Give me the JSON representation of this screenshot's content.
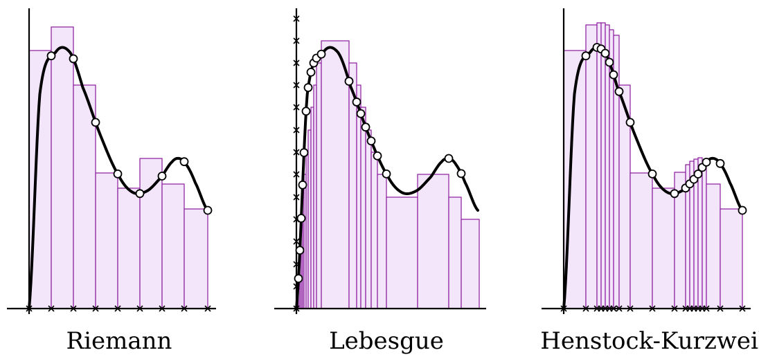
{
  "panels": [
    {
      "title": "Riemann"
    },
    {
      "title": "Lebesgue"
    },
    {
      "title": "Henstock-Kurzweil"
    }
  ],
  "colors": {
    "curve": "#000000",
    "bar_stroke": "#8b1a9e",
    "bar_fill": "#f3e6fb",
    "axis": "#000000",
    "point_fill": "#ffffff"
  }
}
